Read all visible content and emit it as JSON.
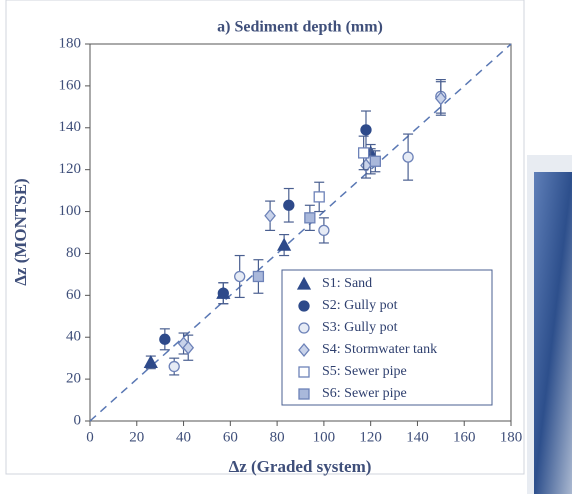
{
  "chart_data": {
    "type": "scatter",
    "title": "a) Sediment depth (mm)",
    "x_label": "Δz (Graded system)",
    "y_label": "Δz (MONTSE)",
    "xlim": [
      0,
      180
    ],
    "ylim": [
      0,
      180
    ],
    "xticks": [
      0,
      20,
      40,
      60,
      80,
      100,
      120,
      140,
      160,
      180
    ],
    "yticks": [
      0,
      20,
      40,
      60,
      80,
      100,
      120,
      140,
      160,
      180
    ],
    "series": [
      {
        "name": "S1: Sand",
        "marker": "triangle",
        "color": "#2e4a8a",
        "x": [
          26,
          57,
          83,
          120
        ],
        "values": [
          28,
          61,
          84,
          128
        ],
        "errors": [
          3,
          5,
          5,
          4
        ]
      },
      {
        "name": "S2: Gully pot",
        "marker": "circle",
        "color": "#2e4a8a",
        "x": [
          32,
          57,
          85,
          118
        ],
        "values": [
          39,
          61,
          103,
          139
        ],
        "errors": [
          5,
          5,
          8,
          9
        ]
      },
      {
        "name": "S3: Gully pot",
        "marker": "open-circle",
        "color": "#6d82b8",
        "x": [
          36,
          64,
          100,
          120,
          136,
          150
        ],
        "values": [
          26,
          69,
          91,
          124,
          126,
          155
        ],
        "errors": [
          4,
          10,
          6,
          6,
          11,
          8
        ]
      },
      {
        "name": "S4: Stormwater tank",
        "marker": "diamond",
        "color": "#6d82b8",
        "x": [
          40,
          42,
          77,
          118,
          150
        ],
        "values": [
          37,
          35,
          98,
          122,
          154
        ],
        "errors": [
          5,
          6,
          7,
          6,
          8
        ]
      },
      {
        "name": "S5: Sewer pipe",
        "marker": "open-square",
        "color": "#6d82b8",
        "x": [
          98,
          117
        ],
        "values": [
          107,
          128
        ],
        "errors": [
          7,
          8
        ]
      },
      {
        "name": "S6: Sewer pipe",
        "marker": "square",
        "color": "#6d82b8",
        "x": [
          72,
          94,
          122
        ],
        "values": [
          69,
          97,
          124
        ],
        "errors": [
          8,
          6,
          5
        ]
      }
    ]
  }
}
